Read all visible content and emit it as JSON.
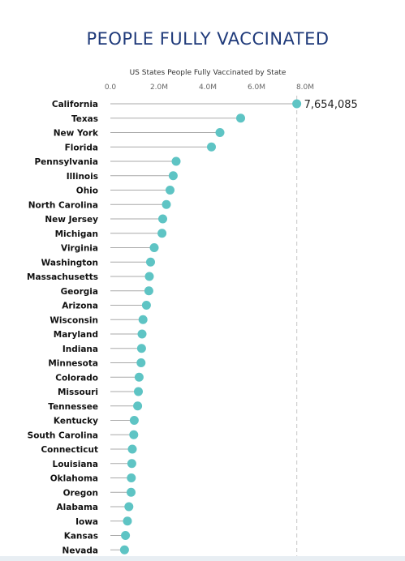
{
  "header": {
    "title": "PEOPLE FULLY VACCINATED"
  },
  "chart_data": {
    "type": "lollipop",
    "title": "US States People Fully Vaccinated by State",
    "xlabel": "",
    "ylabel": "",
    "xlim": [
      0,
      8000000
    ],
    "x_ticks": [
      {
        "value": 0,
        "label": "0.0"
      },
      {
        "value": 2000000,
        "label": "2.0M"
      },
      {
        "value": 4000000,
        "label": "4.0M"
      },
      {
        "value": 6000000,
        "label": "6.0M"
      },
      {
        "value": 8000000,
        "label": "8.0M"
      }
    ],
    "reference_line_value": 7654085,
    "categories": [
      "California",
      "Texas",
      "New York",
      "Florida",
      "Pennsylvania",
      "Illinois",
      "Ohio",
      "North Carolina",
      "New Jersey",
      "Michigan",
      "Virginia",
      "Washington",
      "Massachusetts",
      "Georgia",
      "Arizona",
      "Wisconsin",
      "Maryland",
      "Indiana",
      "Minnesota",
      "Colorado",
      "Missouri",
      "Tennessee",
      "Kentucky",
      "South Carolina",
      "Connecticut",
      "Louisiana",
      "Oklahoma",
      "Oregon",
      "Alabama",
      "Iowa",
      "Kansas",
      "Nevada"
    ],
    "values": [
      7654085,
      5350000,
      4500000,
      4150000,
      2700000,
      2580000,
      2450000,
      2300000,
      2150000,
      2120000,
      1800000,
      1650000,
      1600000,
      1580000,
      1480000,
      1340000,
      1300000,
      1280000,
      1260000,
      1180000,
      1150000,
      1120000,
      980000,
      960000,
      900000,
      880000,
      860000,
      850000,
      760000,
      700000,
      620000,
      580000
    ],
    "data_labels": [
      {
        "category": "California",
        "text": "7,654,085"
      }
    ],
    "colors": {
      "marker": "#5ec4c4",
      "stem": "#a9a9a9",
      "reference_line": "#d0d0d0",
      "title": "#1f3a7a"
    },
    "grid": false,
    "legend": "none"
  }
}
